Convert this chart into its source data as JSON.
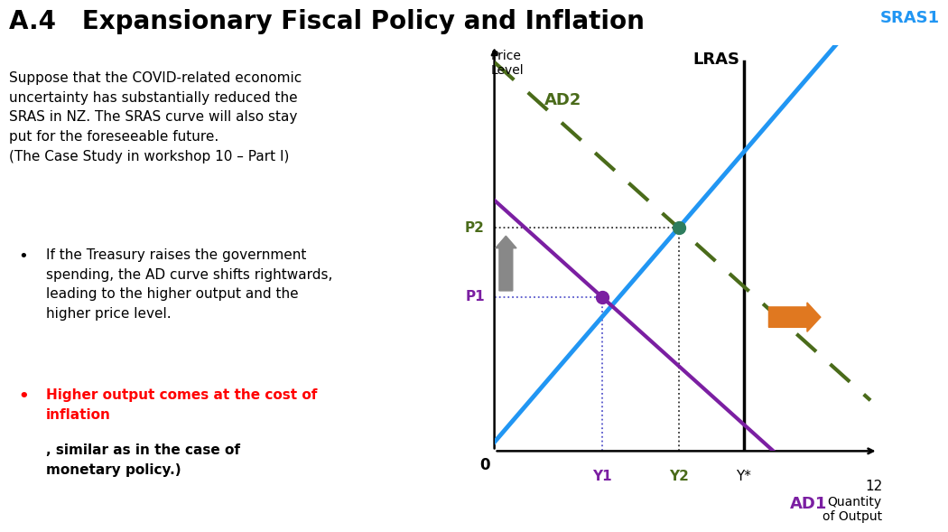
{
  "title": "A.4   Expansionary Fiscal Policy and Inflation",
  "title_fontsize": 20,
  "title_fontweight": "bold",
  "bg_color": "#ffffff",
  "para_text": "Suppose that the COVID-related economic\nuncertainty has substantially reduced the\nSRAS in NZ. The SRAS curve will also stay\nput for the foreseeable future.\n(The Case Study in workshop 10 – Part I)",
  "bullet1_text": "If the Treasury raises the government\nspending, the AD curve shifts rightwards,\nleading to the higher output and the\nhigher price level.",
  "bullet2_red": "Higher output comes at the cost of\ninflation",
  "bullet2_black": ", similar as in the case of\nmonetary policy.)",
  "page_number": "12",
  "graph": {
    "xlim": [
      0,
      10
    ],
    "ylim": [
      0,
      10
    ],
    "ylabel": "Price\nLevel",
    "xlabel": "Quantity\nof Output",
    "lras_x": 6.5,
    "y1_x": 2.8,
    "y2_x": 4.8,
    "p1_y": 3.8,
    "p2_y": 5.5,
    "sras_color": "#2196F3",
    "ad1_color": "#7B1FA2",
    "ad2_color": "#4a6b1a",
    "lras_color": "#000000",
    "dot1_color": "#7B1FA2",
    "dot2_color": "#2e7d5e",
    "orange_color": "#E07820",
    "gray_color": "#888888",
    "sras_label": "SRAS1",
    "ad1_label": "AD1",
    "ad2_label": "AD2",
    "lras_label": "LRAS"
  }
}
